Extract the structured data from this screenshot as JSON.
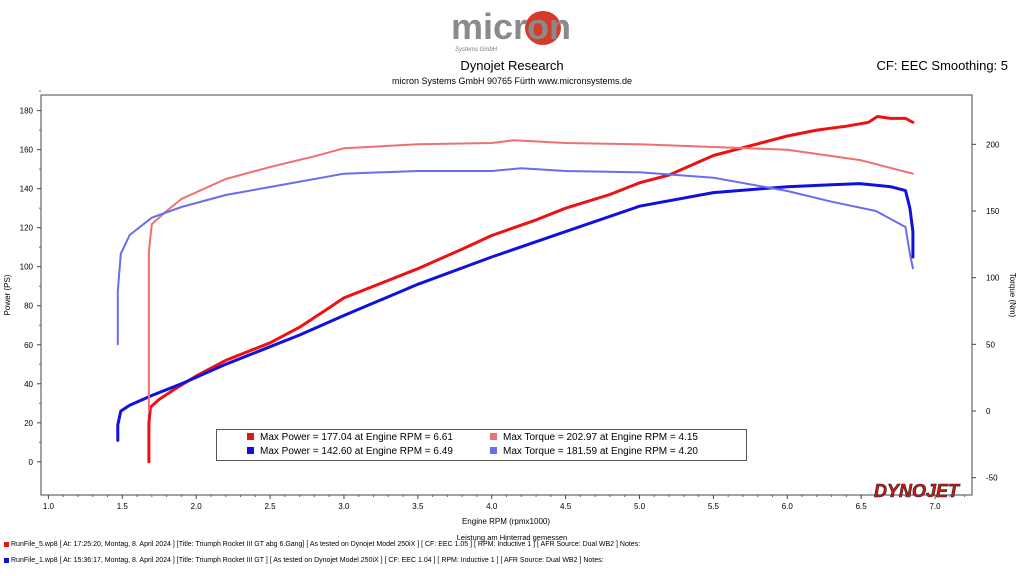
{
  "header": {
    "logo_text": "micron",
    "logo_sub": "Systems GmbH",
    "title": "Dynojet Research",
    "subtitle": "micron Systems GmbH  90765 Fürth www.micronsystems.de",
    "cf": "CF: EEC Smoothing: 5"
  },
  "legend": {
    "items": [
      {
        "text": "Max Power = 177.04 at Engine RPM = 6.61",
        "color": "#ee1111"
      },
      {
        "text": "Max Torque = 202.97 at Engine RPM = 4.15",
        "color": "#f07070"
      },
      {
        "text": "Max Power = 142.60 at Engine RPM = 6.49",
        "color": "#1111dd"
      },
      {
        "text": "Max Torque = 181.59 at Engine RPM = 4.20",
        "color": "#6b6bee"
      }
    ]
  },
  "footer": {
    "subtitle": "Leistung am Hinterrad gemessen",
    "runs": [
      {
        "text": "RunFile_5.wp8 [ At: 17:25:20, Montag, 8. April 2024 ] [Title: Triumph Rocket III GT abg 6.Gang]  [ As tested on Dynojet Model 250iX ] [ CF: EEC 1.05 ] [ RPM: Inductive 1 ] [ AFR Source:  Dual WB2 ] Notes:",
        "color": "#ee1111"
      },
      {
        "text": "RunFile_1.wp8 [ At: 15:36:17, Montag, 8. April 2024 ] [Title: Triumph Rocket III GT ]  [ As tested on Dynojet Model 250iX ] [ CF: EEC 1.04 ] [ RPM: Inductive 1 ] [ AFR Source: Dual WB2 ] Notes:",
        "color": "#1111dd"
      }
    ]
  },
  "brand": {
    "dynojet": "DYNOJET"
  },
  "chart_data": {
    "type": "line",
    "xlabel": "Engine RPM (rpmx1000)",
    "ylabel": "Power (PS)",
    "y2label": "Torque (Nm)",
    "xlim": [
      0.95,
      7.25
    ],
    "ylim": [
      -17,
      188
    ],
    "y2lim": [
      -63,
      237
    ],
    "xticks": [
      "1.0",
      "1.5",
      "2.0",
      "2.5",
      "3.0",
      "3.5",
      "4.0",
      "4.5",
      "5.0",
      "5.5",
      "6.0",
      "6.5",
      "7.0"
    ],
    "yticks": [
      "0",
      "20",
      "40",
      "60",
      "80",
      "100",
      "120",
      "140",
      "160",
      "180"
    ],
    "y2ticks": [
      "-50",
      "0",
      "50",
      "100",
      "150",
      "200"
    ],
    "grid": false,
    "series": [
      {
        "color": "#ee1111",
        "axis": "left",
        "width": 3,
        "x": [
          1.68,
          1.68,
          1.69,
          1.75,
          1.85,
          2.0,
          2.2,
          2.5,
          2.7,
          2.9,
          3.0,
          3.3,
          3.5,
          3.8,
          4.0,
          4.3,
          4.5,
          4.8,
          5.0,
          5.2,
          5.5,
          5.8,
          6.0,
          6.2,
          6.4,
          6.55,
          6.61,
          6.7,
          6.8,
          6.85
        ],
        "y": [
          0,
          20,
          28,
          32,
          37,
          44,
          52,
          61,
          69,
          79,
          84,
          93,
          99,
          109,
          116,
          124,
          130,
          137,
          143,
          147,
          157,
          163,
          167,
          170,
          172,
          174,
          177,
          176,
          176,
          174
        ]
      },
      {
        "color": "#1111dd",
        "axis": "left",
        "width": 3,
        "x": [
          1.47,
          1.47,
          1.49,
          1.55,
          1.7,
          1.9,
          2.2,
          2.5,
          2.7,
          3.0,
          3.5,
          4.0,
          4.5,
          5.0,
          5.5,
          6.0,
          6.3,
          6.49,
          6.7,
          6.8,
          6.83,
          6.85,
          6.85
        ],
        "y": [
          11,
          19,
          26,
          29,
          34,
          40,
          50,
          59,
          65,
          75,
          91,
          105,
          118,
          131,
          138,
          141,
          142,
          142.6,
          141,
          139,
          130,
          118,
          105
        ]
      },
      {
        "color": "#f07070",
        "axis": "right",
        "width": 2,
        "x": [
          1.68,
          1.68,
          1.7,
          1.8,
          1.9,
          2.0,
          2.2,
          2.5,
          2.8,
          3.0,
          3.5,
          4.0,
          4.15,
          4.5,
          5.0,
          5.5,
          6.0,
          6.5,
          6.85
        ],
        "y": [
          1,
          120,
          140,
          150,
          159,
          164,
          174,
          183,
          191,
          197,
          200,
          201,
          203,
          201,
          200,
          198,
          196,
          188,
          178
        ]
      },
      {
        "color": "#6b6bee",
        "axis": "right",
        "width": 2,
        "x": [
          1.47,
          1.47,
          1.49,
          1.55,
          1.7,
          1.9,
          2.2,
          2.5,
          3.0,
          3.5,
          4.0,
          4.2,
          4.5,
          5.0,
          5.5,
          6.0,
          6.3,
          6.6,
          6.8,
          6.83,
          6.85
        ],
        "y": [
          50,
          90,
          118,
          132,
          145,
          153,
          162,
          168,
          178,
          180,
          180,
          182,
          180,
          179,
          175,
          165,
          157,
          150,
          138,
          118,
          107
        ]
      }
    ]
  }
}
